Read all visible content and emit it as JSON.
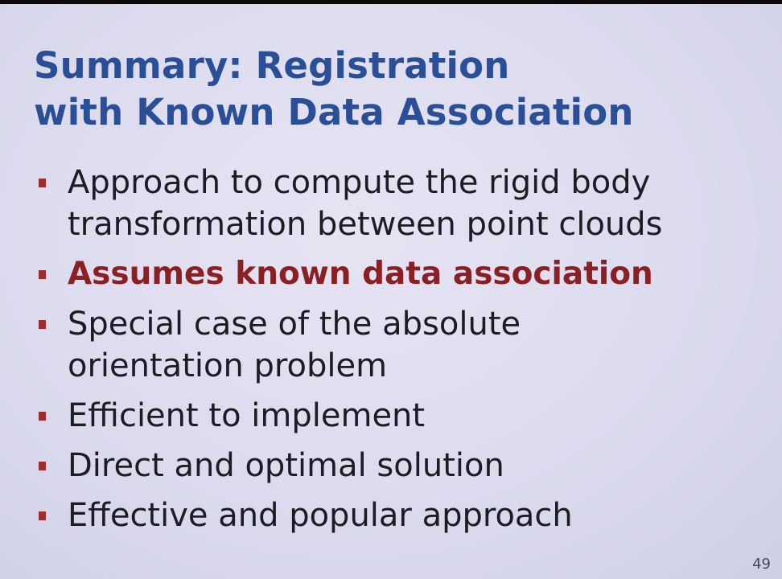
{
  "slide": {
    "title_lines": [
      "Summary: Registration",
      "with Known Data Association"
    ],
    "bullets": [
      {
        "lines": [
          "Approach to compute the rigid body",
          "transformation between point clouds"
        ],
        "emphasis": false
      },
      {
        "lines": [
          "Assumes known data association"
        ],
        "emphasis": true
      },
      {
        "lines": [
          "Special case of the absolute",
          "orientation problem"
        ],
        "emphasis": false
      },
      {
        "lines": [
          "Efficient to implement"
        ],
        "emphasis": false
      },
      {
        "lines": [
          "Direct and optimal solution"
        ],
        "emphasis": false
      },
      {
        "lines": [
          "Effective and popular approach"
        ],
        "emphasis": false
      }
    ],
    "page_number": "49"
  },
  "colors": {
    "title": "#2a4f96",
    "emphasis": "#8a1f24",
    "bullet_marker": "#9e2d30",
    "body_text": "#1c1c24"
  }
}
